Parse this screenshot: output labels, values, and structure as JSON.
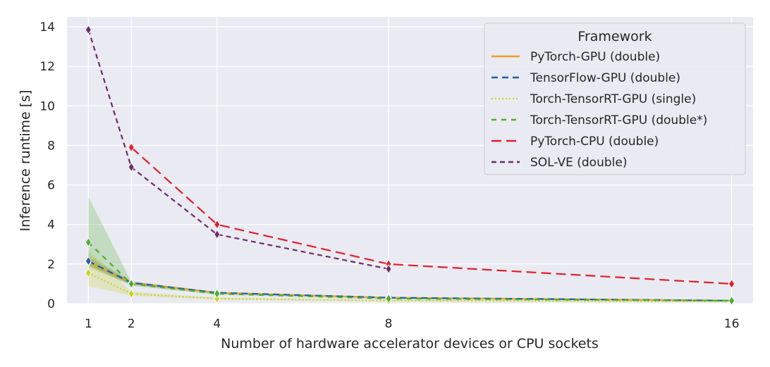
{
  "chart_data": {
    "type": "line",
    "xlabel": "Number of hardware accelerator devices or CPU sockets",
    "ylabel": "Inference runtime [s]",
    "xlim": [
      0.5,
      16.5
    ],
    "ylim": [
      0,
      14.5
    ],
    "x_ticks": [
      1,
      2,
      4,
      8,
      16
    ],
    "y_ticks": [
      0,
      2,
      4,
      6,
      8,
      10,
      12,
      14
    ],
    "grid": true,
    "legend": {
      "title": "Framework",
      "placement": "top-right"
    },
    "series": [
      {
        "name": "PyTorch-GPU (double)",
        "color": "#e8a020",
        "dash": "solid",
        "marker_color": "#e8a020",
        "x": [
          1,
          2,
          4,
          8,
          16
        ],
        "y": [
          2.1,
          1.05,
          0.55,
          0.3,
          0.15
        ],
        "band": [
          [
            1.8,
            2.5
          ],
          [
            0.95,
            1.15
          ],
          [
            0.5,
            0.6
          ],
          [
            0.27,
            0.33
          ],
          [
            0.13,
            0.17
          ]
        ]
      },
      {
        "name": "TensorFlow-GPU (double)",
        "color": "#1f5fa8",
        "dash": "9,6",
        "marker_color": "#1f5fa8",
        "x": [
          1,
          2,
          4,
          8,
          16
        ],
        "y": [
          2.15,
          1.05,
          0.55,
          0.3,
          0.15
        ],
        "band": [
          [
            1.95,
            2.35
          ],
          [
            0.98,
            1.12
          ],
          [
            0.52,
            0.58
          ],
          [
            0.28,
            0.32
          ],
          [
            0.14,
            0.16
          ]
        ]
      },
      {
        "name": "Torch-TensorRT-GPU (single)",
        "color": "#c8d42a",
        "dash": "2,3",
        "marker_color": "#c8d42a",
        "x": [
          1,
          2,
          4,
          8,
          16
        ],
        "y": [
          1.55,
          0.5,
          0.25,
          0.15,
          0.1
        ],
        "band": [
          [
            0.9,
            2.7
          ],
          [
            0.4,
            0.6
          ],
          [
            0.2,
            0.3
          ],
          [
            0.12,
            0.18
          ],
          [
            0.08,
            0.12
          ]
        ]
      },
      {
        "name": "Torch-TensorRT-GPU (double*)",
        "color": "#4cae2e",
        "dash": "7,7",
        "marker_color": "#4cae2e",
        "x": [
          1,
          2,
          4,
          8,
          16
        ],
        "y": [
          3.1,
          1.0,
          0.5,
          0.25,
          0.15
        ],
        "band": [
          [
            1.9,
            5.4
          ],
          [
            0.9,
            1.1
          ],
          [
            0.45,
            0.55
          ],
          [
            0.22,
            0.28
          ],
          [
            0.13,
            0.17
          ]
        ]
      },
      {
        "name": "PyTorch-CPU (double)",
        "color": "#e0202c",
        "dash": "14,7",
        "marker_color": "#e0202c",
        "x": [
          2,
          4,
          8,
          16
        ],
        "y": [
          7.9,
          4.0,
          2.0,
          1.0
        ],
        "band": null
      },
      {
        "name": "SOL-VE (double)",
        "color": "#6c2c6a",
        "dash": "7,5",
        "marker_color": "#6c2c6a",
        "x": [
          1,
          2,
          4,
          8
        ],
        "y": [
          13.85,
          6.9,
          3.5,
          1.75
        ],
        "band": null
      }
    ]
  }
}
